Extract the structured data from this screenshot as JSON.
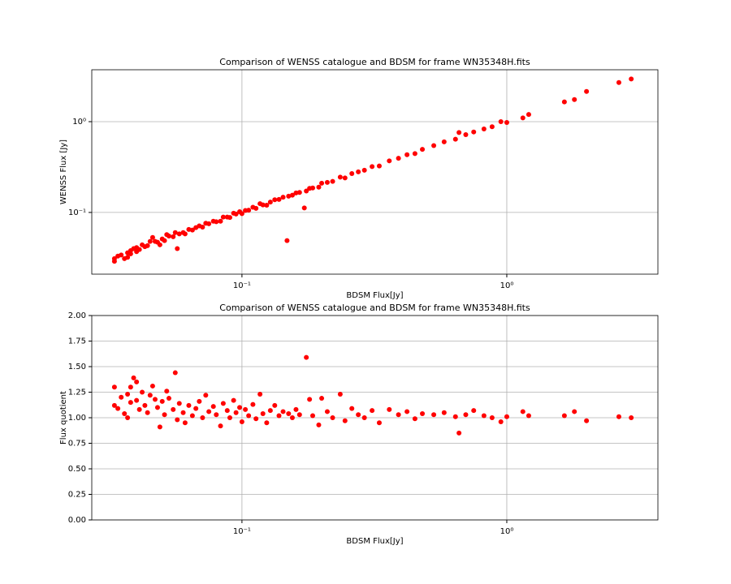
{
  "chart_data": [
    {
      "type": "scatter",
      "title": "Comparison of WENSS catalogue and BDSM for frame WN35348H.fits",
      "xlabel": "BDSM Flux[Jy]",
      "ylabel": "WENSS Flux [Jy]",
      "xscale": "log",
      "yscale": "log",
      "grid": true,
      "color": "#ff0000",
      "xlim": [
        0.0271,
        3.72
      ],
      "ylim": [
        0.0209,
        3.73
      ],
      "xticks": [
        {
          "value": 0.1,
          "label": "10⁻¹"
        },
        {
          "value": 1,
          "label": "10⁰"
        }
      ],
      "yticks": [
        {
          "value": 0.1,
          "label": "10⁻¹"
        },
        {
          "value": 1,
          "label": "10⁰"
        }
      ],
      "x": [
        0.033,
        0.033,
        0.034,
        0.035,
        0.036,
        0.037,
        0.037,
        0.038,
        0.038,
        0.039,
        0.04,
        0.04,
        0.041,
        0.042,
        0.043,
        0.044,
        0.045,
        0.046,
        0.047,
        0.048,
        0.049,
        0.05,
        0.051,
        0.052,
        0.053,
        0.055,
        0.056,
        0.057,
        0.058,
        0.06,
        0.061,
        0.063,
        0.065,
        0.067,
        0.069,
        0.071,
        0.073,
        0.075,
        0.078,
        0.08,
        0.083,
        0.085,
        0.088,
        0.09,
        0.093,
        0.095,
        0.098,
        0.1,
        0.103,
        0.106,
        0.11,
        0.113,
        0.117,
        0.12,
        0.124,
        0.128,
        0.133,
        0.138,
        0.143,
        0.15,
        0.155,
        0.16,
        0.165,
        0.175,
        0.18,
        0.185,
        0.195,
        0.2,
        0.21,
        0.22,
        0.235,
        0.245,
        0.26,
        0.275,
        0.29,
        0.31,
        0.33,
        0.36,
        0.39,
        0.42,
        0.45,
        0.48,
        0.53,
        0.58,
        0.64,
        0.66,
        0.7,
        0.75,
        0.82,
        0.88,
        0.95,
        1.0,
        1.15,
        1.21,
        1.65,
        1.8,
        2.0,
        2.65,
        2.95,
        0.148,
        0.172
      ],
      "values": [
        0.031,
        0.029,
        0.033,
        0.034,
        0.031,
        0.036,
        0.032,
        0.035,
        0.038,
        0.04,
        0.041,
        0.037,
        0.039,
        0.044,
        0.042,
        0.043,
        0.048,
        0.053,
        0.048,
        0.047,
        0.044,
        0.051,
        0.049,
        0.057,
        0.055,
        0.054,
        0.06,
        0.04,
        0.058,
        0.06,
        0.058,
        0.065,
        0.064,
        0.068,
        0.071,
        0.069,
        0.076,
        0.075,
        0.08,
        0.079,
        0.08,
        0.089,
        0.089,
        0.088,
        0.098,
        0.096,
        0.102,
        0.097,
        0.105,
        0.106,
        0.114,
        0.111,
        0.125,
        0.121,
        0.12,
        0.13,
        0.138,
        0.139,
        0.147,
        0.151,
        0.155,
        0.164,
        0.166,
        0.172,
        0.184,
        0.186,
        0.19,
        0.21,
        0.214,
        0.22,
        0.245,
        0.24,
        0.268,
        0.28,
        0.292,
        0.32,
        0.325,
        0.37,
        0.395,
        0.432,
        0.445,
        0.495,
        0.545,
        0.6,
        0.64,
        0.76,
        0.72,
        0.77,
        0.83,
        0.88,
        1.0,
        0.98,
        1.1,
        1.2,
        1.65,
        1.75,
        2.15,
        2.7,
        2.95,
        0.049,
        0.112
      ]
    },
    {
      "type": "scatter",
      "title": "Comparison of WENSS catalogue and BDSM for frame WN35348H.fits",
      "xlabel": "BDSM Flux[Jy]",
      "ylabel": "Flux quotient",
      "xscale": "log",
      "yscale": "linear",
      "grid": true,
      "color": "#ff0000",
      "xlim": [
        0.0271,
        3.72
      ],
      "ylim": [
        0,
        2
      ],
      "xticks": [
        {
          "value": 0.1,
          "label": "10⁻¹"
        },
        {
          "value": 1,
          "label": "10⁰"
        }
      ],
      "yticks": [
        {
          "value": 0,
          "label": "0.00"
        },
        0.25,
        {
          "value": 0.5,
          "label": "0.50"
        },
        0.75,
        {
          "value": 1,
          "label": "1.00"
        },
        1.25,
        {
          "value": 1.5,
          "label": "1.50"
        },
        1.75,
        {
          "value": 2,
          "label": "2.00"
        }
      ],
      "x": [
        0.033,
        0.033,
        0.034,
        0.035,
        0.036,
        0.037,
        0.037,
        0.038,
        0.038,
        0.039,
        0.04,
        0.04,
        0.041,
        0.042,
        0.043,
        0.044,
        0.045,
        0.046,
        0.047,
        0.048,
        0.049,
        0.05,
        0.051,
        0.052,
        0.053,
        0.055,
        0.056,
        0.057,
        0.058,
        0.06,
        0.061,
        0.063,
        0.065,
        0.067,
        0.069,
        0.071,
        0.073,
        0.075,
        0.078,
        0.08,
        0.083,
        0.085,
        0.088,
        0.09,
        0.093,
        0.095,
        0.098,
        0.1,
        0.103,
        0.106,
        0.11,
        0.113,
        0.117,
        0.12,
        0.124,
        0.128,
        0.133,
        0.138,
        0.143,
        0.15,
        0.155,
        0.16,
        0.165,
        0.175,
        0.18,
        0.185,
        0.195,
        0.2,
        0.21,
        0.22,
        0.235,
        0.245,
        0.26,
        0.275,
        0.29,
        0.31,
        0.33,
        0.36,
        0.39,
        0.42,
        0.45,
        0.48,
        0.53,
        0.58,
        0.64,
        0.66,
        0.7,
        0.75,
        0.82,
        0.88,
        0.95,
        1.0,
        1.15,
        1.21,
        1.65,
        1.8,
        2.0,
        2.65,
        2.95
      ],
      "values": [
        1.3,
        1.12,
        1.09,
        1.2,
        1.04,
        1.23,
        1.0,
        1.15,
        1.3,
        1.39,
        1.35,
        1.17,
        1.08,
        1.25,
        1.12,
        1.05,
        1.22,
        1.31,
        1.18,
        1.1,
        0.91,
        1.16,
        1.03,
        1.26,
        1.19,
        1.08,
        1.44,
        0.98,
        1.14,
        1.05,
        0.95,
        1.12,
        1.02,
        1.09,
        1.16,
        1.0,
        1.22,
        1.06,
        1.11,
        1.03,
        0.92,
        1.14,
        1.07,
        1.0,
        1.17,
        1.05,
        1.1,
        0.96,
        1.08,
        1.02,
        1.13,
        0.99,
        1.23,
        1.04,
        0.95,
        1.07,
        1.12,
        1.02,
        1.06,
        1.04,
        1.0,
        1.08,
        1.03,
        1.59,
        1.18,
        1.02,
        0.93,
        1.19,
        1.06,
        1.0,
        1.23,
        0.97,
        1.09,
        1.03,
        1.0,
        1.07,
        0.95,
        1.08,
        1.03,
        1.06,
        0.99,
        1.04,
        1.03,
        1.05,
        1.01,
        0.85,
        1.03,
        1.07,
        1.02,
        1.0,
        0.96,
        1.01,
        1.06,
        1.02,
        1.02,
        1.06,
        0.97,
        1.01,
        1.0
      ]
    }
  ]
}
